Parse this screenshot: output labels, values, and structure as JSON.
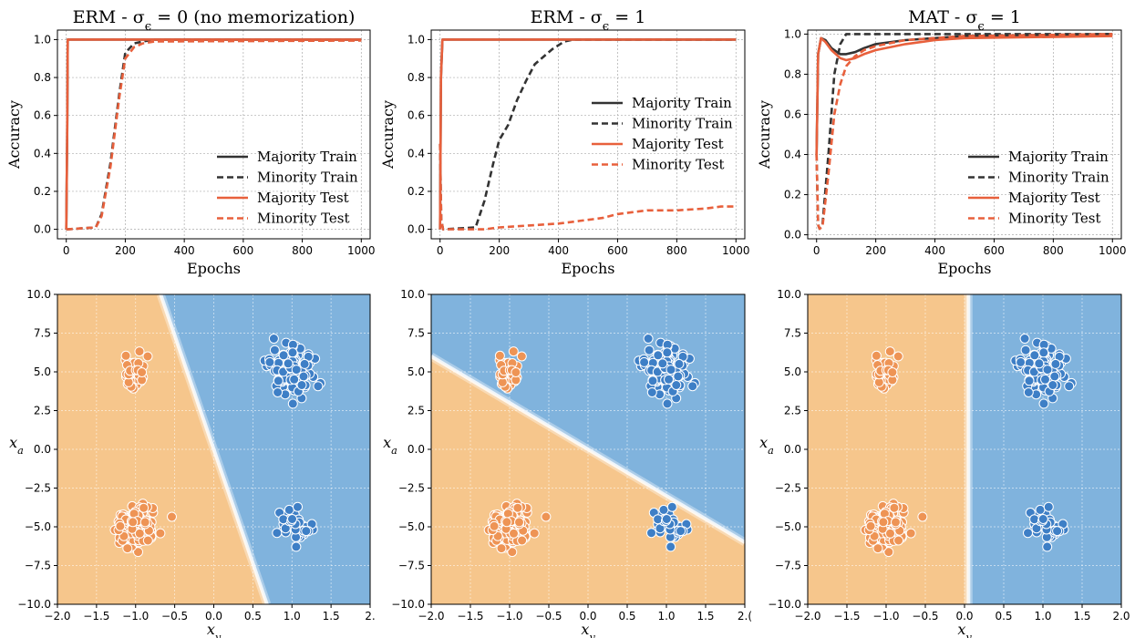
{
  "colors": {
    "majority_train": "#333333",
    "minority_train": "#333333",
    "majority_test": "#e8603c",
    "minority_test": "#e8603c",
    "orange_region": "#f6c68c",
    "blue_region": "#80b3dd",
    "orange_point": "#ee9455",
    "blue_point": "#3e7fc6",
    "grid": "#aaaaaa"
  },
  "chart_data": [
    {
      "type": "line",
      "title": "ERM - σ_ϵ = 0 (no memorization)",
      "xlabel": "Epochs",
      "ylabel": "Accuracy",
      "xlim": [
        -30,
        1030
      ],
      "ylim": [
        -0.05,
        1.05
      ],
      "xticks": [
        0,
        200,
        400,
        600,
        800,
        1000
      ],
      "yticks": [
        0.0,
        0.2,
        0.4,
        0.6,
        0.8,
        1.0
      ],
      "legend": "lower-right",
      "grid": true,
      "series": [
        {
          "name": "Majority Train",
          "style": "solid",
          "color": "#333333",
          "x": [
            0,
            3,
            5,
            1000
          ],
          "y": [
            0.0,
            0.5,
            1.0,
            1.0
          ]
        },
        {
          "name": "Minority Train",
          "style": "dashed",
          "color": "#333333",
          "x": [
            0,
            5,
            100,
            120,
            150,
            180,
            200,
            230,
            260,
            300,
            1000
          ],
          "y": [
            0.0,
            0.0,
            0.01,
            0.08,
            0.35,
            0.72,
            0.93,
            0.98,
            0.99,
            1.0,
            1.0
          ]
        },
        {
          "name": "Majority Test",
          "style": "solid",
          "color": "#e8603c",
          "x": [
            0,
            3,
            5,
            1000
          ],
          "y": [
            0.0,
            0.5,
            1.0,
            1.0
          ]
        },
        {
          "name": "Minority Test",
          "style": "dashed",
          "color": "#e8603c",
          "x": [
            0,
            5,
            100,
            120,
            150,
            180,
            200,
            230,
            260,
            300,
            1000
          ],
          "y": [
            0.0,
            0.0,
            0.01,
            0.07,
            0.33,
            0.7,
            0.9,
            0.96,
            0.98,
            0.99,
            0.995
          ]
        }
      ]
    },
    {
      "type": "line",
      "title": "ERM - σ_ϵ = 1",
      "xlabel": "Epochs",
      "ylabel": "Accuracy",
      "xlim": [
        -30,
        1030
      ],
      "ylim": [
        -0.05,
        1.05
      ],
      "xticks": [
        0,
        200,
        400,
        600,
        800,
        1000
      ],
      "yticks": [
        0.0,
        0.2,
        0.4,
        0.6,
        0.8,
        1.0
      ],
      "legend": "center-right",
      "grid": true,
      "series": [
        {
          "name": "Majority Train",
          "style": "solid",
          "color": "#333333",
          "x": [
            0,
            3,
            8,
            1000
          ],
          "y": [
            0.0,
            0.8,
            1.0,
            1.0
          ]
        },
        {
          "name": "Minority Train",
          "style": "dashed",
          "color": "#333333",
          "x": [
            0,
            4,
            10,
            120,
            150,
            180,
            200,
            230,
            260,
            290,
            320,
            350,
            380,
            420,
            450,
            1000
          ],
          "y": [
            0.45,
            0.05,
            0.0,
            0.01,
            0.15,
            0.35,
            0.47,
            0.55,
            0.68,
            0.78,
            0.87,
            0.91,
            0.95,
            0.99,
            1.0,
            1.0
          ]
        },
        {
          "name": "Majority Test",
          "style": "solid",
          "color": "#e8603c",
          "x": [
            0,
            3,
            8,
            1000
          ],
          "y": [
            0.0,
            0.8,
            1.0,
            1.0
          ]
        },
        {
          "name": "Minority Test",
          "style": "dashed",
          "color": "#e8603c",
          "x": [
            0,
            4,
            10,
            150,
            200,
            300,
            400,
            450,
            500,
            550,
            600,
            700,
            800,
            900,
            950,
            1000
          ],
          "y": [
            0.45,
            0.05,
            0.0,
            0.0,
            0.01,
            0.02,
            0.03,
            0.04,
            0.05,
            0.06,
            0.08,
            0.1,
            0.1,
            0.11,
            0.12,
            0.12
          ]
        }
      ]
    },
    {
      "type": "line",
      "title": "MAT - σ_ϵ = 1",
      "xlabel": "Epochs",
      "ylabel": "Accuracy",
      "xlim": [
        -30,
        1030
      ],
      "ylim": [
        -0.02,
        1.02
      ],
      "xticks": [
        0,
        200,
        400,
        600,
        800,
        1000
      ],
      "yticks": [
        0.0,
        0.2,
        0.4,
        0.6,
        0.8,
        1.0
      ],
      "legend": "lower-right",
      "grid": true,
      "series": [
        {
          "name": "Majority Train",
          "style": "solid",
          "color": "#333333",
          "x": [
            0,
            5,
            15,
            30,
            50,
            80,
            100,
            130,
            160,
            200,
            300,
            400,
            500,
            1000
          ],
          "y": [
            0.4,
            0.9,
            0.98,
            0.97,
            0.93,
            0.9,
            0.9,
            0.91,
            0.93,
            0.95,
            0.97,
            0.98,
            0.99,
            1.0
          ]
        },
        {
          "name": "Minority Train",
          "style": "dashed",
          "color": "#333333",
          "x": [
            0,
            5,
            10,
            20,
            40,
            60,
            80,
            100,
            1000
          ],
          "y": [
            0.4,
            0.05,
            0.03,
            0.05,
            0.4,
            0.8,
            0.95,
            1.0,
            1.0
          ]
        },
        {
          "name": "Majority Test",
          "style": "solid",
          "color": "#e8603c",
          "x": [
            0,
            5,
            15,
            30,
            50,
            80,
            100,
            130,
            160,
            200,
            300,
            400,
            500,
            1000
          ],
          "y": [
            0.4,
            0.9,
            0.98,
            0.96,
            0.92,
            0.88,
            0.87,
            0.88,
            0.9,
            0.92,
            0.95,
            0.97,
            0.98,
            0.99
          ]
        },
        {
          "name": "Minority Test",
          "style": "dashed",
          "color": "#e8603c",
          "x": [
            0,
            5,
            10,
            20,
            40,
            60,
            80,
            100,
            130,
            160,
            200,
            300,
            400,
            500,
            1000
          ],
          "y": [
            0.4,
            0.05,
            0.03,
            0.04,
            0.3,
            0.6,
            0.75,
            0.84,
            0.89,
            0.92,
            0.94,
            0.97,
            0.98,
            0.99,
            1.0
          ]
        }
      ]
    },
    {
      "type": "scatter",
      "title": "",
      "xlabel": "x_y",
      "ylabel": "x_a",
      "xlim": [
        -2.0,
        2.0
      ],
      "ylim": [
        -10.0,
        10.0
      ],
      "xticks": [
        "−2.0",
        "−1.5",
        "−1.0",
        "−0.5",
        "0.0",
        "0.5",
        "1.0",
        "1.5",
        "2."
      ],
      "yticks": [
        "10.0",
        "7.5",
        "5.0",
        "2.5",
        "0.0",
        "−2.5",
        "−5.0",
        "−7.5",
        "−10.0"
      ],
      "grid": true,
      "decision_boundary": {
        "points": [
          [
            -0.68,
            10.0
          ],
          [
            0.68,
            -10.0
          ]
        ],
        "left_class": "orange",
        "right_class": "blue"
      },
      "clusters": [
        {
          "class": "orange",
          "cx": -1.0,
          "cy": 5.0,
          "sx": 0.1,
          "sy": 0.5,
          "n": 40
        },
        {
          "class": "blue",
          "cx": 1.0,
          "cy": 5.0,
          "sx": 0.13,
          "sy": 0.7,
          "n": 120
        },
        {
          "class": "orange",
          "cx": -1.0,
          "cy": -5.0,
          "sx": 0.14,
          "sy": 0.7,
          "n": 120
        },
        {
          "class": "blue",
          "cx": 1.05,
          "cy": -5.0,
          "sx": 0.1,
          "sy": 0.5,
          "n": 40
        }
      ]
    },
    {
      "type": "scatter",
      "title": "",
      "xlabel": "x_y",
      "ylabel": "x_a",
      "xlim": [
        -2.0,
        2.0
      ],
      "ylim": [
        -10.0,
        10.0
      ],
      "xticks": [
        "−2.0",
        "−1.5",
        "−1.0",
        "−0.5",
        "0.0",
        "0.5",
        "1.0",
        "1.5",
        "2.("
      ],
      "yticks": [
        "10.0",
        "7.5",
        "5.0",
        "2.5",
        "0.0",
        "−2.5",
        "−5.0",
        "−7.5",
        "−10.0"
      ],
      "grid": true,
      "decision_boundary": {
        "points": [
          [
            -2.0,
            6.0
          ],
          [
            2.0,
            -6.0
          ]
        ],
        "upper_class": "blue",
        "lower_class": "orange"
      },
      "clusters": [
        {
          "class": "orange",
          "cx": -1.0,
          "cy": 5.0,
          "sx": 0.1,
          "sy": 0.5,
          "n": 40
        },
        {
          "class": "blue",
          "cx": 1.0,
          "cy": 5.0,
          "sx": 0.13,
          "sy": 0.7,
          "n": 120
        },
        {
          "class": "orange",
          "cx": -1.0,
          "cy": -5.0,
          "sx": 0.14,
          "sy": 0.7,
          "n": 120
        },
        {
          "class": "blue",
          "cx": 1.05,
          "cy": -5.0,
          "sx": 0.1,
          "sy": 0.5,
          "n": 40
        }
      ]
    },
    {
      "type": "scatter",
      "title": "",
      "xlabel": "x_y",
      "ylabel": "x_a",
      "xlim": [
        -2.0,
        2.0
      ],
      "ylim": [
        -10.0,
        10.0
      ],
      "xticks": [
        "−2.0",
        "−1.5",
        "−1.0",
        "−0.5",
        "0.0",
        "0.5",
        "1.0",
        "1.5",
        "2.0"
      ],
      "yticks": [
        "10.0",
        "7.5",
        "5.0",
        "2.5",
        "0.0",
        "−2.5",
        "−5.0",
        "−7.5",
        "−10.0"
      ],
      "grid": true,
      "decision_boundary": {
        "points": [
          [
            0.05,
            10.0
          ],
          [
            0.05,
            -10.0
          ]
        ],
        "left_class": "orange",
        "right_class": "blue"
      },
      "clusters": [
        {
          "class": "orange",
          "cx": -1.0,
          "cy": 5.0,
          "sx": 0.1,
          "sy": 0.5,
          "n": 40
        },
        {
          "class": "blue",
          "cx": 1.0,
          "cy": 5.0,
          "sx": 0.13,
          "sy": 0.7,
          "n": 120
        },
        {
          "class": "orange",
          "cx": -1.0,
          "cy": -5.0,
          "sx": 0.14,
          "sy": 0.7,
          "n": 120
        },
        {
          "class": "blue",
          "cx": 1.05,
          "cy": -5.0,
          "sx": 0.1,
          "sy": 0.5,
          "n": 40
        }
      ]
    }
  ]
}
